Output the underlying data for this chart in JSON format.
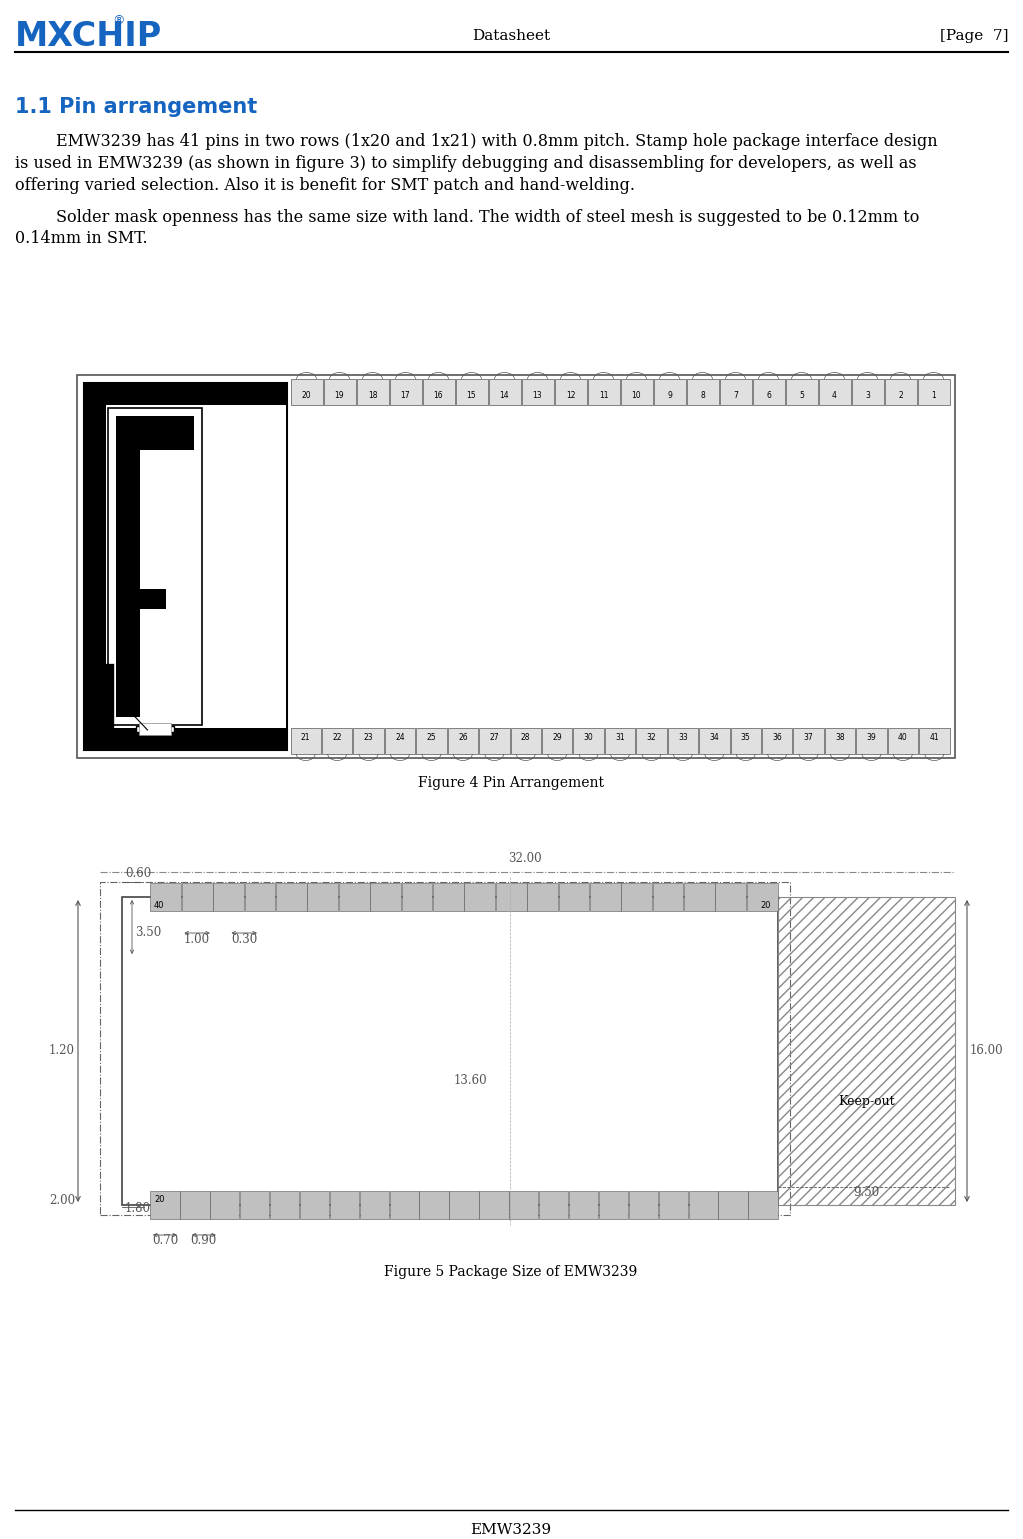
{
  "page_title": "Datasheet",
  "page_num": "[Page  7]",
  "footer": "EMW3239",
  "section_title": "1.1 Pin arrangement",
  "section_title_color": "#1565C0",
  "para1_indent": "        EMW3239 has 41 pins in two rows (1x20 and 1x21) with 0.8mm pitch. Stamp hole package interface design",
  "para1_line2": "is used in EMW3239 (as shown in figure 3) to simplify debugging and disassembling for developers, as well as",
  "para1_line3": "offering varied selection. Also it is benefit for SMT patch and hand-welding.",
  "para2_indent": "        Solder mask openness has the same size with land. The width of steel mesh is suggested to be 0.12mm to",
  "para2_line2": "0.14mm in SMT.",
  "fig4_caption": "Figure 4 Pin Arrangement",
  "fig5_caption": "Figure 5 Package Size of EMW3239",
  "bg_color": "#ffffff",
  "text_color": "#000000",
  "logo_color": "#1565C0",
  "ann_color": "#555555",
  "dim_color": "#888888",
  "body_fontsize": 11.5,
  "section_fontsize": 15,
  "header_fontsize": 11,
  "caption_fontsize": 10,
  "dim_fontsize": 8.5,
  "pin_label_fontsize": 5.5
}
